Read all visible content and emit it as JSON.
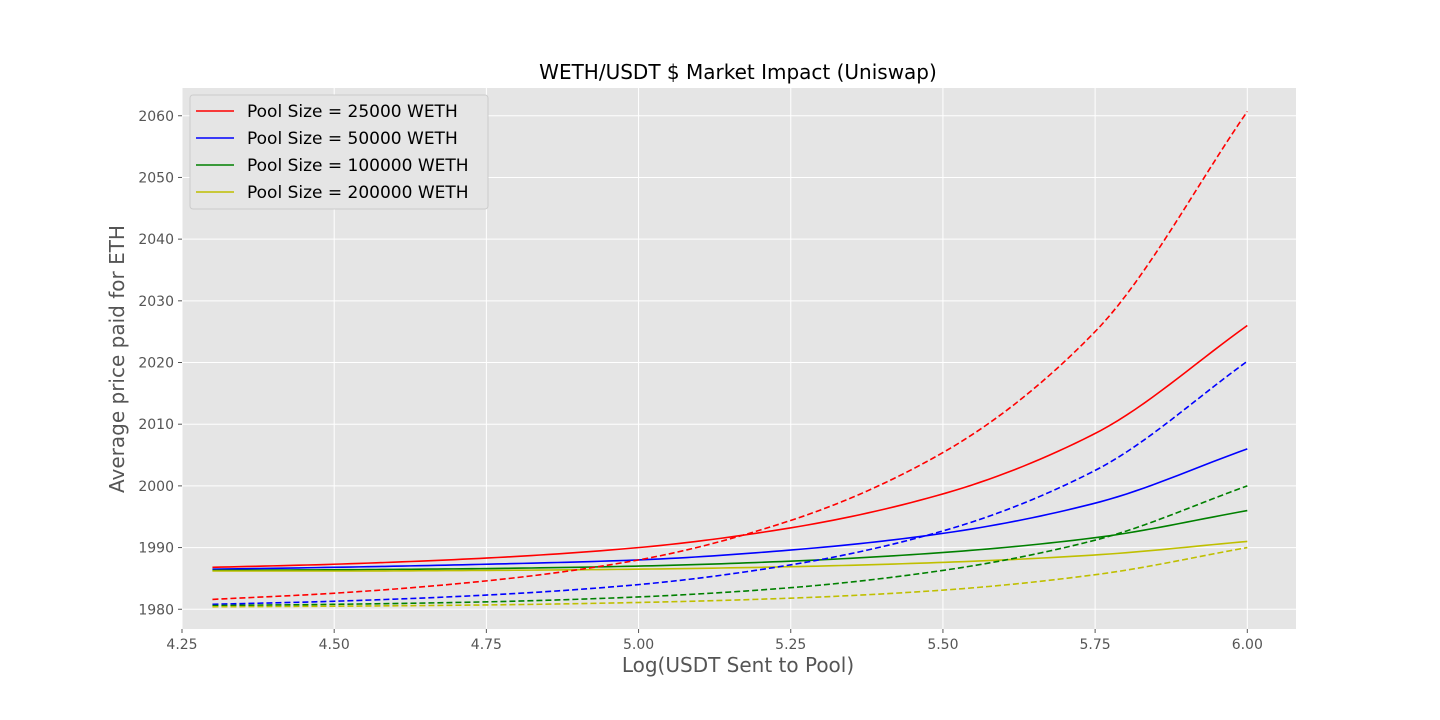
{
  "chart_data": {
    "type": "line",
    "title": "WETH/USDT $ Market Impact (Uniswap)",
    "xlabel": "Log(USDT Sent to Pool)",
    "ylabel": "Average price paid for ETH",
    "xlim": [
      4.25,
      6.08
    ],
    "ylim": [
      1976.8,
      2064.5
    ],
    "xticks": [
      4.25,
      4.5,
      4.75,
      5.0,
      5.25,
      5.5,
      5.75,
      6.0
    ],
    "xtick_labels": [
      "4.25",
      "4.50",
      "4.75",
      "5.00",
      "5.25",
      "5.50",
      "5.75",
      "6.00"
    ],
    "yticks": [
      1980,
      1990,
      2000,
      2010,
      2020,
      2030,
      2040,
      2050,
      2060
    ],
    "ytick_labels": [
      "1980",
      "1990",
      "2000",
      "2010",
      "2020",
      "2030",
      "2040",
      "2050",
      "2060"
    ],
    "grid": true,
    "legend_position": "top-left",
    "x": [
      4.3,
      4.5,
      4.75,
      5.0,
      5.25,
      5.5,
      5.75,
      6.0
    ],
    "series": [
      {
        "name": "Pool Size = 25000 WETH",
        "color": "#ff0000",
        "style": "solid",
        "values": [
          1986.8,
          1987.3,
          1988.3,
          1990.0,
          1993.2,
          1998.7,
          2008.5,
          2026.0
        ]
      },
      {
        "name": "Pool Size = 50000 WETH",
        "color": "#0000ff",
        "style": "solid",
        "values": [
          1986.5,
          1986.8,
          1987.3,
          1988.0,
          1989.6,
          1992.3,
          1997.2,
          2006.0
        ]
      },
      {
        "name": "Pool Size = 100000 WETH",
        "color": "#008000",
        "style": "solid",
        "values": [
          1986.3,
          1986.4,
          1986.6,
          1987.0,
          1987.8,
          1989.2,
          1991.6,
          1996.0
        ]
      },
      {
        "name": "Pool Size = 200000 WETH",
        "color": "#bfbf00",
        "style": "solid",
        "values": [
          1986.2,
          1986.2,
          1986.3,
          1986.5,
          1986.9,
          1987.6,
          1988.8,
          1991.0
        ]
      },
      {
        "name": "",
        "color": "#ff0000",
        "style": "dashed",
        "values": [
          1981.6,
          1982.6,
          1984.6,
          1988.0,
          1994.4,
          2005.4,
          2025.0,
          2060.7
        ]
      },
      {
        "name": "",
        "color": "#0000ff",
        "style": "dashed",
        "values": [
          1980.8,
          1981.3,
          1982.3,
          1984.0,
          1987.2,
          1992.7,
          2002.5,
          2020.2
        ]
      },
      {
        "name": "",
        "color": "#008000",
        "style": "dashed",
        "values": [
          1980.6,
          1980.8,
          1981.2,
          1982.0,
          1983.5,
          1986.3,
          1991.2,
          2000.0
        ]
      },
      {
        "name": "",
        "color": "#bfbf00",
        "style": "dashed",
        "values": [
          1980.4,
          1980.5,
          1980.7,
          1981.1,
          1981.8,
          1983.1,
          1985.6,
          1990.0
        ]
      }
    ]
  }
}
